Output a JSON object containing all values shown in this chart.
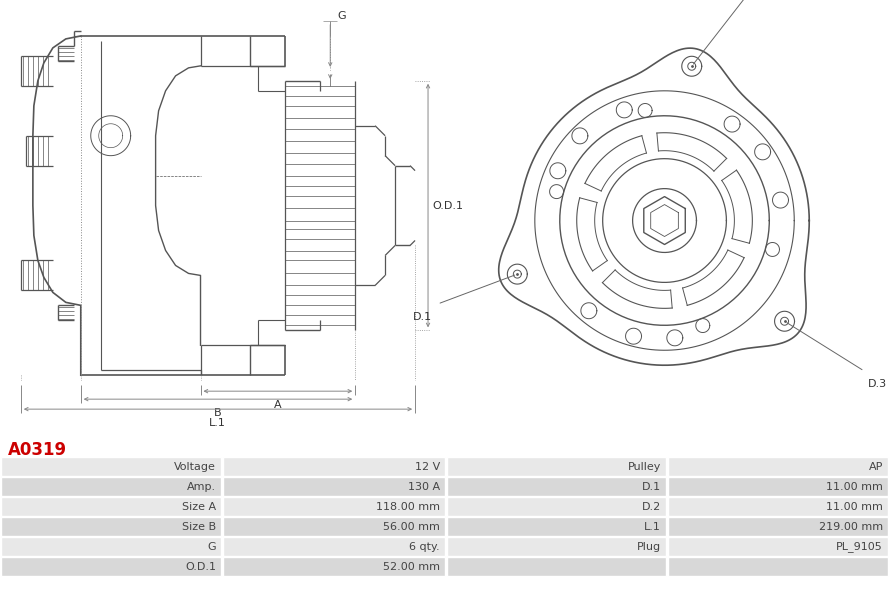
{
  "title": "A0319",
  "title_color": "#cc0000",
  "background_color": "#ffffff",
  "table_row_bg1": "#e8e8e8",
  "table_row_bg2": "#d8d8d8",
  "table_data": [
    [
      "Voltage",
      "12 V",
      "Pulley",
      "AP"
    ],
    [
      "Amp.",
      "130 A",
      "D.1",
      "11.00 mm"
    ],
    [
      "Size A",
      "118.00 mm",
      "D.2",
      "11.00 mm"
    ],
    [
      "Size B",
      "56.00 mm",
      "L.1",
      "219.00 mm"
    ],
    [
      "G",
      "6 qty.",
      "Plug",
      "PL_9105"
    ],
    [
      "O.D.1",
      "52.00 mm",
      "",
      ""
    ]
  ],
  "line_color": "#555555",
  "dim_line_color": "#888888",
  "label_color": "#333333",
  "table_fontsize": 8.0
}
